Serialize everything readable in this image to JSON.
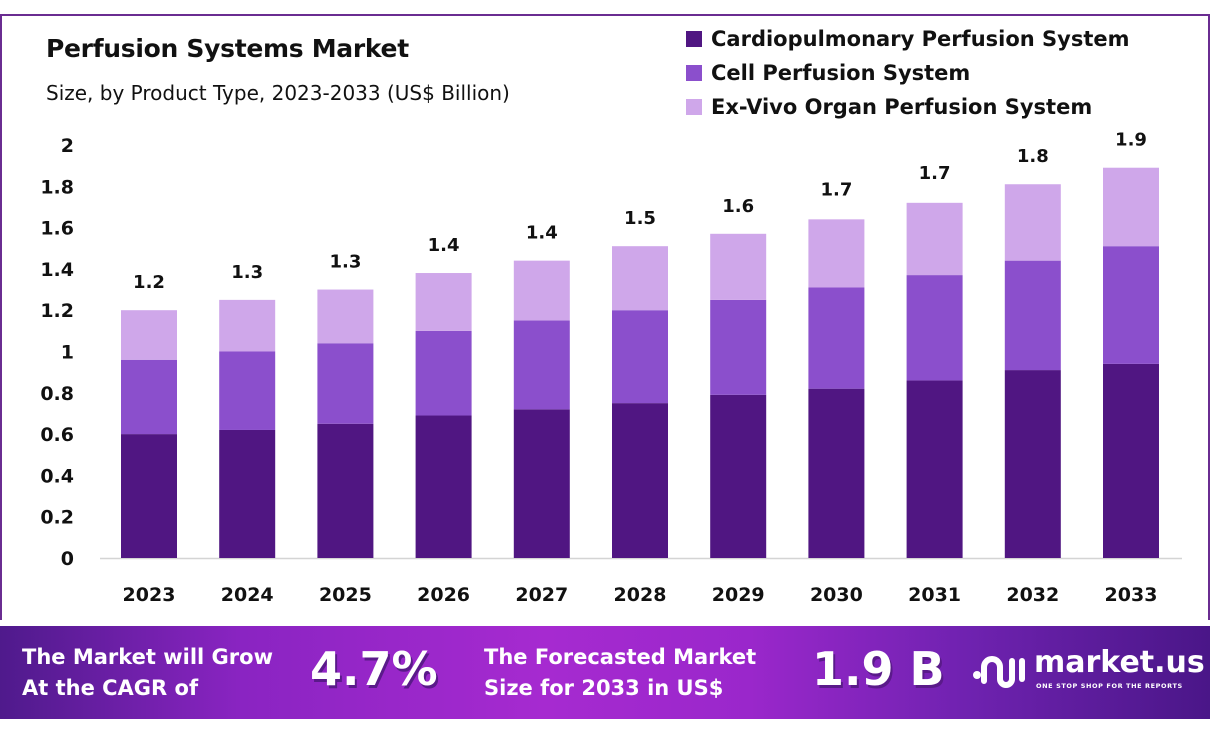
{
  "chart_data": {
    "type": "bar",
    "stacked": true,
    "title": "Perfusion Systems Market",
    "subtitle": "Size, by Product Type, 2023-2033 (US$ Billion)",
    "xlabel": "",
    "ylabel": "",
    "ylim": [
      0,
      2
    ],
    "yticks": [
      "0",
      "0.2",
      "0.4",
      "0.6",
      "0.8",
      "1",
      "1.2",
      "1.4",
      "1.6",
      "1.8",
      "2"
    ],
    "ytick_values": [
      0,
      0.2,
      0.4,
      0.6,
      0.8,
      1.0,
      1.2,
      1.4,
      1.6,
      1.8,
      2.0
    ],
    "grid": false,
    "legend_position": "top-right",
    "categories": [
      "2023",
      "2024",
      "2025",
      "2026",
      "2027",
      "2028",
      "2029",
      "2030",
      "2031",
      "2032",
      "2033"
    ],
    "series": [
      {
        "name": "Cardiopulmonary Perfusion System",
        "color": "#501682",
        "values": [
          0.6,
          0.62,
          0.65,
          0.69,
          0.72,
          0.75,
          0.79,
          0.82,
          0.86,
          0.91,
          0.94
        ]
      },
      {
        "name": "Cell Perfusion System",
        "color": "#8b4fcc",
        "values": [
          0.36,
          0.38,
          0.39,
          0.41,
          0.43,
          0.45,
          0.46,
          0.49,
          0.51,
          0.53,
          0.57
        ]
      },
      {
        "name": "Ex-Vivo Organ Perfusion System",
        "color": "#cfa7ea",
        "values": [
          0.24,
          0.25,
          0.26,
          0.28,
          0.29,
          0.31,
          0.32,
          0.33,
          0.35,
          0.37,
          0.38
        ]
      }
    ],
    "totals": [
      1.2,
      1.25,
      1.3,
      1.38,
      1.44,
      1.51,
      1.57,
      1.65,
      1.73,
      1.81,
      1.89
    ],
    "total_labels": [
      "1.2",
      "1.3",
      "1.3",
      "1.4",
      "1.4",
      "1.5",
      "1.6",
      "1.7",
      "1.7",
      "1.8",
      "1.9"
    ]
  },
  "banner": {
    "cagr_text_line1": "The Market will Grow",
    "cagr_text_line2": "At the CAGR of",
    "cagr_value": "4.7%",
    "forecast_text_line1": "The Forecasted Market",
    "forecast_text_line2": "Size for 2033 in US$",
    "forecast_value": "1.9 B",
    "logo_name": "market.us",
    "logo_tagline": "ONE STOP SHOP FOR THE REPORTS"
  },
  "colors": {
    "frame": "#6a2c91",
    "cardiopulmonary": "#501682",
    "cell": "#8b4fcc",
    "ex_vivo": "#cfa7ea"
  }
}
